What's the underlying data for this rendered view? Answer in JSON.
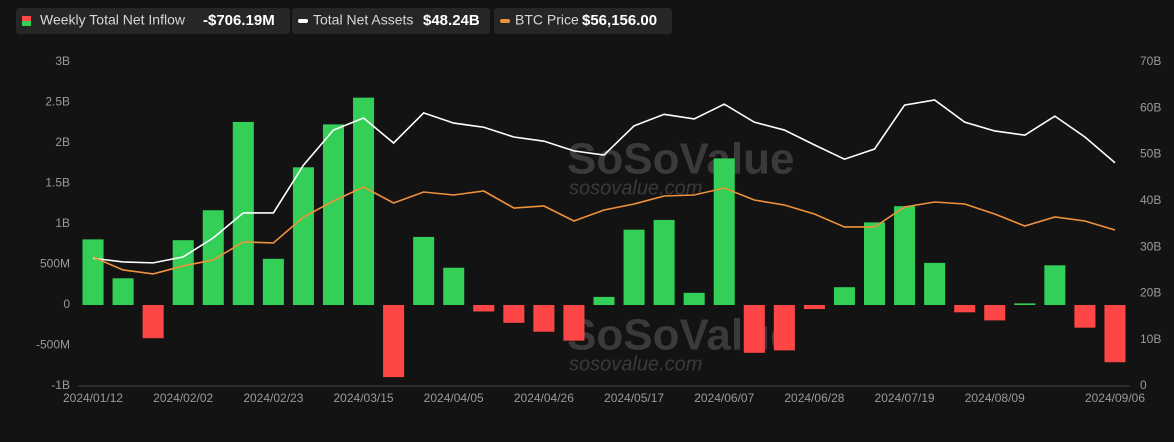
{
  "chart_data": {
    "type": "bar-line",
    "watermark": "SoSoValue",
    "watermark_url": "sosovalue.com",
    "categories": [
      "2024/01/12",
      null,
      null,
      "2024/02/02",
      null,
      null,
      "2024/02/23",
      null,
      null,
      "2024/03/15",
      null,
      null,
      "2024/04/05",
      null,
      null,
      "2024/04/26",
      null,
      null,
      "2024/05/17",
      null,
      null,
      "2024/06/07",
      null,
      null,
      "2024/06/28",
      null,
      null,
      "2024/07/19",
      null,
      null,
      "2024/08/09",
      null,
      null,
      null,
      "2024/09/06"
    ],
    "series": [
      {
        "name": "Weekly Total Net Inflow",
        "latest": "-$706.19M",
        "kind": "bar",
        "axis": "y",
        "positive_color": "#33cf57",
        "negative_color": "#ff4646",
        "values": [
          0.81,
          0.33,
          -0.41,
          0.8,
          1.17,
          2.26,
          0.57,
          1.7,
          2.23,
          2.56,
          -0.89,
          0.84,
          0.46,
          -0.08,
          -0.22,
          -0.33,
          -0.44,
          0.1,
          0.93,
          1.05,
          0.15,
          1.81,
          -0.59,
          -0.56,
          -0.05,
          0.22,
          1.02,
          1.22,
          0.52,
          -0.09,
          -0.19,
          0.02,
          0.49,
          -0.28,
          -0.70619
        ]
      },
      {
        "name": "Total Net Assets",
        "latest": "$48.24B",
        "kind": "line",
        "axis": "y2",
        "color": "#ffffff",
        "values": [
          27.6,
          26.8,
          26.6,
          27.9,
          32.0,
          37.4,
          37.4,
          47.7,
          55.3,
          57.9,
          52.5,
          59.0,
          56.8,
          55.9,
          53.8,
          52.9,
          50.8,
          49.9,
          56.2,
          58.7,
          57.7,
          60.9,
          57.0,
          55.3,
          52.1,
          49.0,
          51.2,
          60.7,
          61.8,
          57.0,
          55.1,
          54.2,
          58.3,
          53.8,
          48.24
        ]
      },
      {
        "name": "BTC Price",
        "latest": "$56,156.00",
        "kind": "line",
        "axis": "y3",
        "color": "#f0923a",
        "values": [
          45580,
          40490,
          38920,
          42060,
          44400,
          51460,
          51070,
          61250,
          67520,
          73000,
          66730,
          71040,
          69870,
          71430,
          64770,
          65560,
          59680,
          64000,
          66340,
          69480,
          69870,
          72600,
          67900,
          65950,
          62420,
          57330,
          57330,
          65160,
          67120,
          66340,
          62420,
          57720,
          61250,
          59680,
          56156
        ]
      }
    ],
    "ylim": [
      -1,
      3
    ],
    "yticks": [
      {
        "value": -1,
        "label": "-1B"
      },
      {
        "value": -0.5,
        "label": "-500M"
      },
      0,
      {
        "value": 0.5,
        "label": "500M"
      },
      {
        "value": 1,
        "label": "1B"
      },
      {
        "value": 1.5,
        "label": "1.5B"
      },
      {
        "value": 2,
        "label": "2B"
      },
      {
        "value": 2.5,
        "label": "2.5B"
      },
      {
        "value": 3,
        "label": "3B"
      }
    ],
    "y2lim": [
      0,
      70
    ],
    "y2ticks": [
      0,
      {
        "value": 10,
        "label": "10B"
      },
      {
        "value": 20,
        "label": "20B"
      },
      {
        "value": 30,
        "label": "30B"
      },
      {
        "value": 40,
        "label": "40B"
      },
      {
        "value": 50,
        "label": "50B"
      },
      {
        "value": 60,
        "label": "60B"
      },
      {
        "value": 70,
        "label": "70B"
      }
    ],
    "y3lim": [
      -5000,
      122000
    ]
  }
}
